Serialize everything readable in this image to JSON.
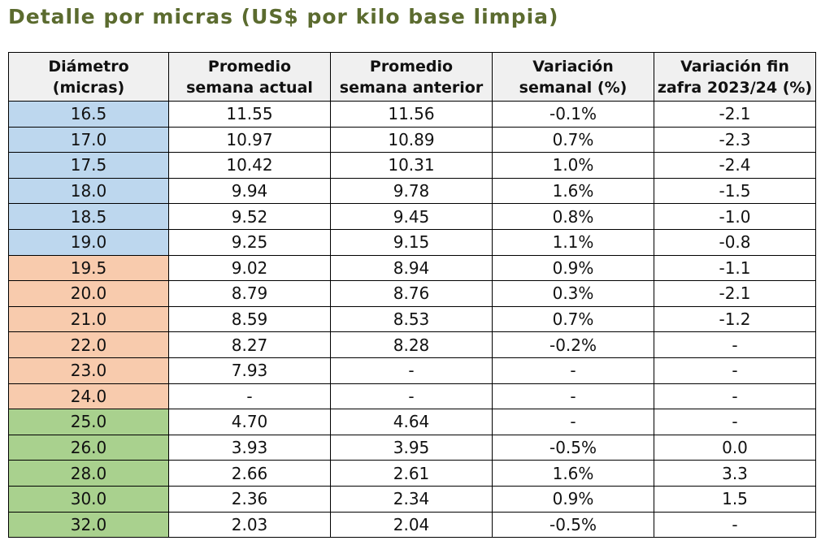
{
  "title": "Detalle por micras (US$ por kilo base limpia)",
  "colors": {
    "title": "#5b6b2f",
    "header_bg": "#f0f0f0",
    "group_blue": "#bdd7ee",
    "group_orange": "#f8cbad",
    "group_green": "#a9d18e"
  },
  "headers": [
    [
      "Diámetro",
      "(micras)"
    ],
    [
      "Promedio",
      "semana actual"
    ],
    [
      "Promedio",
      "semana anterior"
    ],
    [
      "Variación",
      "semanal (%)"
    ],
    [
      "Variación fin",
      "zafra 2023/24 (%)"
    ]
  ],
  "rows": [
    {
      "group": "blue",
      "cells": [
        "16.5",
        "11.55",
        "11.56",
        "-0.1%",
        "-2.1"
      ]
    },
    {
      "group": "blue",
      "cells": [
        "17.0",
        "10.97",
        "10.89",
        "0.7%",
        "-2.3"
      ]
    },
    {
      "group": "blue",
      "cells": [
        "17.5",
        "10.42",
        "10.31",
        "1.0%",
        "-2.4"
      ]
    },
    {
      "group": "blue",
      "cells": [
        "18.0",
        "9.94",
        "9.78",
        "1.6%",
        "-1.5"
      ]
    },
    {
      "group": "blue",
      "cells": [
        "18.5",
        "9.52",
        "9.45",
        "0.8%",
        "-1.0"
      ]
    },
    {
      "group": "blue",
      "cells": [
        "19.0",
        "9.25",
        "9.15",
        "1.1%",
        "-0.8"
      ]
    },
    {
      "group": "orange",
      "cells": [
        "19.5",
        "9.02",
        "8.94",
        "0.9%",
        "-1.1"
      ]
    },
    {
      "group": "orange",
      "cells": [
        "20.0",
        "8.79",
        "8.76",
        "0.3%",
        "-2.1"
      ]
    },
    {
      "group": "orange",
      "cells": [
        "21.0",
        "8.59",
        "8.53",
        "0.7%",
        "-1.2"
      ]
    },
    {
      "group": "orange",
      "cells": [
        "22.0",
        "8.27",
        "8.28",
        "-0.2%",
        "-"
      ]
    },
    {
      "group": "orange",
      "cells": [
        "23.0",
        "7.93",
        "-",
        "-",
        "-"
      ]
    },
    {
      "group": "orange",
      "cells": [
        "24.0",
        "-",
        "-",
        "-",
        "-"
      ]
    },
    {
      "group": "green",
      "cells": [
        "25.0",
        "4.70",
        "4.64",
        "-",
        "-"
      ]
    },
    {
      "group": "green",
      "cells": [
        "26.0",
        "3.93",
        "3.95",
        "-0.5%",
        "0.0"
      ]
    },
    {
      "group": "green",
      "cells": [
        "28.0",
        "2.66",
        "2.61",
        "1.6%",
        "3.3"
      ]
    },
    {
      "group": "green",
      "cells": [
        "30.0",
        "2.36",
        "2.34",
        "0.9%",
        "1.5"
      ]
    },
    {
      "group": "green",
      "cells": [
        "32.0",
        "2.03",
        "2.04",
        "-0.5%",
        "-"
      ]
    }
  ]
}
